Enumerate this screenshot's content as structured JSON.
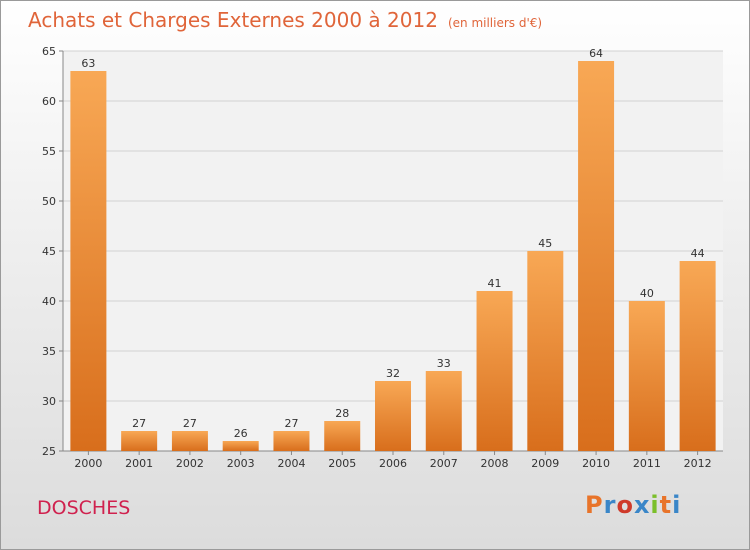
{
  "page": {
    "title": "Achats et Charges Externes 2000 à 2012",
    "unit": "(en milliers d'€)",
    "place": "DOSCHES",
    "logo": {
      "text": "Proxiti",
      "colors": [
        "#e8742a",
        "#3a86c8",
        "#cf3a2a",
        "#3a86c8",
        "#7bbf2a",
        "#e8742a",
        "#3a86c8"
      ]
    }
  },
  "colors": {
    "title": "#e0653a",
    "place": "#d0214e",
    "bar_light": "#f8a855",
    "bar_dark": "#d86e1c"
  },
  "chart_data": {
    "type": "bar",
    "title": "Achats et Charges Externes 2000 à 2012",
    "subtitle": "(en milliers d'€)",
    "xlabel": "",
    "ylabel": "",
    "categories": [
      "2000",
      "2001",
      "2002",
      "2003",
      "2004",
      "2005",
      "2006",
      "2007",
      "2008",
      "2009",
      "2010",
      "2011",
      "2012"
    ],
    "values": [
      63,
      27,
      27,
      26,
      27,
      28,
      32,
      33,
      41,
      45,
      64,
      40,
      44
    ],
    "ylim": [
      25,
      65
    ],
    "yticks": [
      25,
      30,
      35,
      40,
      45,
      50,
      55,
      60,
      65
    ],
    "grid": true,
    "legend": "none"
  }
}
